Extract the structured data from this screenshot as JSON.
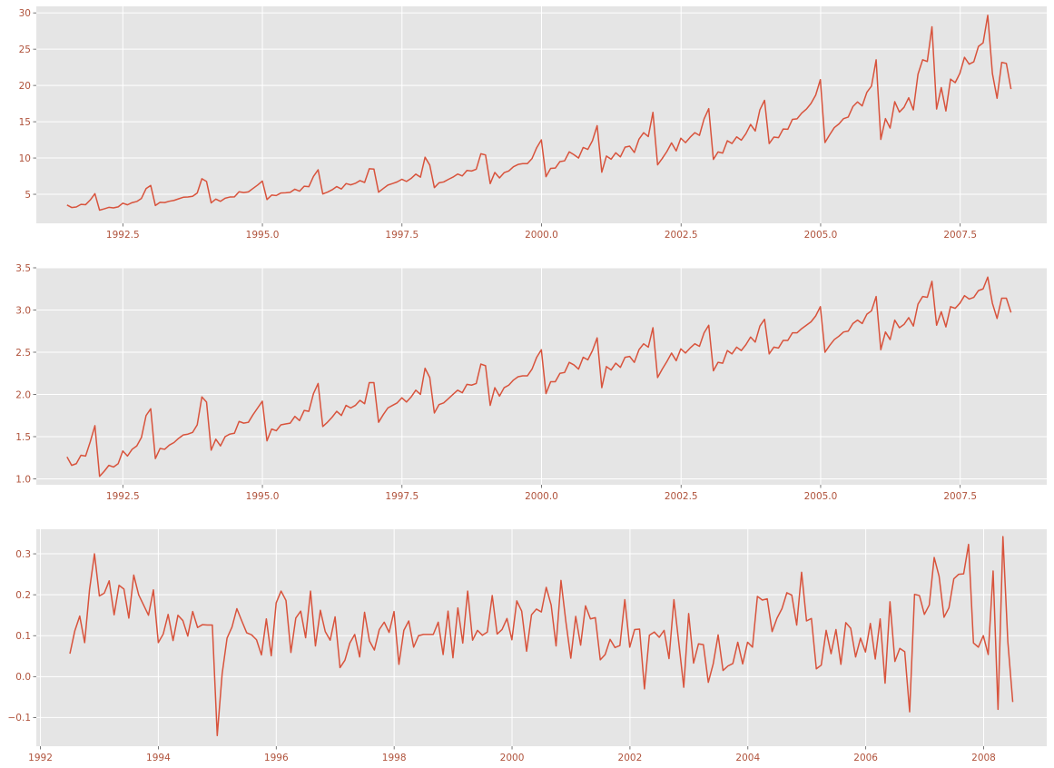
{
  "chart_data": [
    {
      "type": "line",
      "title": "",
      "xlabel": "",
      "ylabel": "",
      "xlim": [
        1990.95,
        2009.05
      ],
      "ylim": [
        1.0,
        30.9
      ],
      "xticks": [
        1992.5,
        1995.0,
        1997.5,
        2000.0,
        2002.5,
        2005.0,
        2007.5
      ],
      "xtick_labels": [
        "1992.5",
        "1995.0",
        "1997.5",
        "2000.0",
        "2002.5",
        "2005.0",
        "2007.5"
      ],
      "yticks": [
        5,
        10,
        15,
        20,
        25,
        30
      ],
      "ytick_labels": [
        "5",
        "10",
        "15",
        "20",
        "25",
        "30"
      ],
      "grid": true,
      "legend": "none",
      "color": "#d8533c",
      "series": [
        {
          "x_start": 1991.5,
          "x_step": 0.0833,
          "values": [
            3.53,
            3.18,
            3.25,
            3.61,
            3.57,
            4.22,
            5.09,
            2.81,
            2.99,
            3.2,
            3.13,
            3.27,
            3.78,
            3.55,
            3.85,
            4.01,
            4.43,
            5.78,
            6.22,
            3.46,
            3.89,
            3.86,
            4.04,
            4.16,
            4.38,
            4.59,
            4.63,
            4.72,
            5.18,
            7.15,
            6.77,
            3.82,
            4.34,
            4.03,
            4.46,
            4.62,
            4.65,
            5.35,
            5.24,
            5.33,
            5.81,
            6.28,
            6.82,
            4.27,
            4.89,
            4.83,
            5.18,
            5.2,
            5.27,
            5.7,
            5.43,
            6.11,
            6.05,
            7.47,
            8.38,
            5.05,
            5.29,
            5.62,
            6.06,
            5.73,
            6.48,
            6.3,
            6.51,
            6.89,
            6.63,
            8.52,
            8.47,
            5.29,
            5.79,
            6.27,
            6.48,
            6.71,
            7.07,
            6.77,
            7.19,
            7.78,
            7.36,
            10.11,
            9.03,
            5.92,
            6.58,
            6.7,
            7.05,
            7.37,
            7.79,
            7.53,
            8.29,
            8.21,
            8.45,
            10.59,
            10.42,
            6.47,
            8.01,
            7.25,
            7.98,
            8.22,
            8.79,
            9.11,
            9.22,
            9.23,
            9.93,
            11.42,
            12.5,
            7.43,
            8.57,
            8.61,
            9.51,
            9.61,
            10.85,
            10.46,
            10.0,
            11.45,
            11.19,
            12.4,
            14.46,
            8.04,
            10.27,
            9.83,
            10.72,
            10.16,
            11.49,
            11.63,
            10.76,
            12.6,
            13.49,
            12.96,
            16.29,
            9.06,
            9.94,
            10.9,
            12.09,
            10.98,
            12.73,
            12.12,
            12.86,
            13.49,
            13.12,
            15.39,
            16.81,
            9.8,
            10.84,
            10.68,
            12.38,
            12.0,
            12.91,
            12.46,
            13.36,
            14.63,
            13.72,
            16.65,
            17.95,
            11.99,
            12.88,
            12.8,
            14.0,
            13.96,
            15.33,
            15.41,
            16.19,
            16.74,
            17.53,
            18.67,
            20.8,
            12.13,
            13.2,
            14.19,
            14.7,
            15.43,
            15.65,
            17.09,
            17.73,
            17.18,
            19.05,
            19.92,
            23.53,
            12.56,
            15.43,
            14.13,
            17.76,
            16.33,
            16.99,
            18.31,
            16.63,
            21.55,
            23.54,
            23.3,
            28.09,
            16.75,
            19.71,
            16.48,
            20.87,
            20.39,
            21.66,
            23.88,
            22.93,
            23.26,
            25.38,
            25.87,
            29.67,
            21.65,
            18.23,
            23.17,
            23.04,
            19.5
          ]
        }
      ]
    },
    {
      "type": "line",
      "title": "",
      "xlabel": "",
      "ylabel": "",
      "xlim": [
        1990.95,
        2009.05
      ],
      "ylim": [
        0.93,
        3.5
      ],
      "xticks": [
        1992.5,
        1995.0,
        1997.5,
        2000.0,
        2002.5,
        2005.0,
        2007.5
      ],
      "xtick_labels": [
        "1992.5",
        "1995.0",
        "1997.5",
        "2000.0",
        "2002.5",
        "2005.0",
        "2007.5"
      ],
      "yticks": [
        1.0,
        1.5,
        2.0,
        2.5,
        3.0,
        3.5
      ],
      "ytick_labels": [
        "1.0",
        "1.5",
        "2.0",
        "2.5",
        "3.0",
        "3.5"
      ],
      "grid": true,
      "legend": "none",
      "color": "#d8533c",
      "series": [
        {
          "x_start": 1991.5,
          "x_step": 0.0833,
          "values": [
            1.26,
            1.16,
            1.18,
            1.28,
            1.27,
            1.44,
            1.63,
            1.03,
            1.09,
            1.16,
            1.14,
            1.18,
            1.33,
            1.27,
            1.35,
            1.39,
            1.49,
            1.75,
            1.83,
            1.24,
            1.36,
            1.35,
            1.4,
            1.43,
            1.48,
            1.52,
            1.53,
            1.55,
            1.64,
            1.97,
            1.91,
            1.34,
            1.47,
            1.39,
            1.5,
            1.53,
            1.54,
            1.68,
            1.66,
            1.67,
            1.76,
            1.84,
            1.92,
            1.45,
            1.59,
            1.57,
            1.64,
            1.65,
            1.66,
            1.74,
            1.69,
            1.81,
            1.8,
            2.01,
            2.13,
            1.62,
            1.67,
            1.73,
            1.8,
            1.75,
            1.87,
            1.84,
            1.87,
            1.93,
            1.89,
            2.14,
            2.14,
            1.67,
            1.76,
            1.84,
            1.87,
            1.9,
            1.96,
            1.91,
            1.97,
            2.05,
            2.0,
            2.31,
            2.2,
            1.78,
            1.88,
            1.9,
            1.95,
            2.0,
            2.05,
            2.02,
            2.12,
            2.11,
            2.13,
            2.36,
            2.34,
            1.87,
            2.08,
            1.98,
            2.08,
            2.11,
            2.17,
            2.21,
            2.22,
            2.22,
            2.3,
            2.44,
            2.53,
            2.01,
            2.15,
            2.15,
            2.25,
            2.26,
            2.38,
            2.35,
            2.3,
            2.44,
            2.41,
            2.52,
            2.67,
            2.08,
            2.33,
            2.29,
            2.37,
            2.32,
            2.44,
            2.45,
            2.38,
            2.53,
            2.6,
            2.56,
            2.79,
            2.2,
            2.3,
            2.39,
            2.49,
            2.4,
            2.54,
            2.49,
            2.55,
            2.6,
            2.57,
            2.73,
            2.82,
            2.28,
            2.38,
            2.37,
            2.52,
            2.48,
            2.56,
            2.52,
            2.59,
            2.68,
            2.62,
            2.81,
            2.89,
            2.48,
            2.56,
            2.55,
            2.64,
            2.64,
            2.73,
            2.73,
            2.78,
            2.82,
            2.86,
            2.93,
            3.04,
            2.5,
            2.58,
            2.65,
            2.69,
            2.74,
            2.75,
            2.84,
            2.88,
            2.84,
            2.95,
            2.99,
            3.16,
            2.53,
            2.74,
            2.65,
            2.88,
            2.79,
            2.83,
            2.91,
            2.81,
            3.07,
            3.16,
            3.15,
            3.34,
            2.82,
            2.98,
            2.8,
            3.04,
            3.02,
            3.08,
            3.17,
            3.13,
            3.15,
            3.23,
            3.25,
            3.39,
            3.08,
            2.9,
            3.14,
            3.14,
            2.97
          ]
        }
      ]
    },
    {
      "type": "line",
      "title": "",
      "xlabel": "",
      "ylabel": "",
      "xlim": [
        1991.93,
        2009.07
      ],
      "ylim": [
        -0.17,
        0.36
      ],
      "xticks": [
        1992,
        1994,
        1996,
        1998,
        2000,
        2002,
        2004,
        2006,
        2008
      ],
      "xtick_labels": [
        "1992",
        "1994",
        "1996",
        "1998",
        "2000",
        "2002",
        "2004",
        "2006",
        "2008"
      ],
      "yticks": [
        -0.1,
        0.0,
        0.1,
        0.2,
        0.3
      ],
      "ytick_labels": [
        "−0.1",
        "0.0",
        "0.1",
        "0.2",
        "0.3"
      ],
      "grid": true,
      "legend": "none",
      "color": "#d8533c",
      "series": [
        {
          "x_start": 1992.5,
          "x_step": 0.0833,
          "values": [
            0.056,
            0.112,
            0.148,
            0.083,
            0.213,
            0.3,
            0.197,
            0.204,
            0.234,
            0.151,
            0.223,
            0.214,
            0.143,
            0.248,
            0.2,
            0.175,
            0.15,
            0.212,
            0.083,
            0.104,
            0.152,
            0.088,
            0.15,
            0.137,
            0.099,
            0.159,
            0.12,
            0.127,
            0.126,
            0.126,
            -0.144,
            0.007,
            0.094,
            0.121,
            0.166,
            0.136,
            0.107,
            0.102,
            0.09,
            0.053,
            0.141,
            0.051,
            0.18,
            0.209,
            0.186,
            0.059,
            0.143,
            0.16,
            0.095,
            0.209,
            0.075,
            0.162,
            0.11,
            0.089,
            0.146,
            0.022,
            0.04,
            0.082,
            0.103,
            0.048,
            0.157,
            0.087,
            0.065,
            0.115,
            0.133,
            0.108,
            0.159,
            0.03,
            0.113,
            0.136,
            0.072,
            0.1,
            0.103,
            0.103,
            0.103,
            0.133,
            0.054,
            0.16,
            0.046,
            0.168,
            0.082,
            0.209,
            0.089,
            0.113,
            0.101,
            0.109,
            0.198,
            0.104,
            0.115,
            0.142,
            0.09,
            0.185,
            0.16,
            0.062,
            0.151,
            0.165,
            0.158,
            0.218,
            0.175,
            0.075,
            0.235,
            0.134,
            0.045,
            0.147,
            0.077,
            0.173,
            0.141,
            0.144,
            0.041,
            0.054,
            0.091,
            0.071,
            0.076,
            0.188,
            0.072,
            0.115,
            0.116,
            -0.03,
            0.101,
            0.109,
            0.096,
            0.113,
            0.044,
            0.188,
            0.082,
            -0.026,
            0.154,
            0.033,
            0.08,
            0.078,
            -0.014,
            0.031,
            0.102,
            0.015,
            0.026,
            0.032,
            0.084,
            0.031,
            0.084,
            0.072,
            0.196,
            0.187,
            0.19,
            0.11,
            0.143,
            0.166,
            0.205,
            0.199,
            0.126,
            0.255,
            0.136,
            0.142,
            0.019,
            0.028,
            0.113,
            0.056,
            0.115,
            0.03,
            0.132,
            0.118,
            0.048,
            0.094,
            0.06,
            0.13,
            0.043,
            0.141,
            -0.016,
            0.183,
            0.037,
            0.069,
            0.061,
            -0.086,
            0.201,
            0.198,
            0.152,
            0.175,
            0.291,
            0.245,
            0.145,
            0.168,
            0.239,
            0.25,
            0.251,
            0.323,
            0.082,
            0.072,
            0.1,
            0.054,
            0.258,
            -0.08,
            0.342,
            0.085,
            -0.062
          ]
        }
      ]
    }
  ]
}
